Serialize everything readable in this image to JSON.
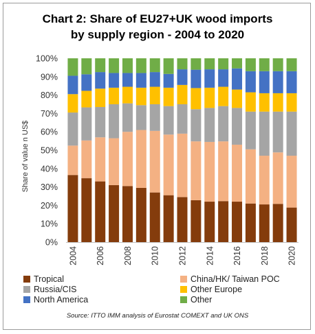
{
  "chart_data": {
    "type": "bar",
    "stacked": true,
    "title_line1": "Chart 2: Share of EU27+UK wood imports",
    "title_line2": "by supply region - 2004 to 2020",
    "ylabel": "Share of value n US$",
    "xlabel": "",
    "ylim": [
      0,
      100
    ],
    "y_ticks": [
      "0%",
      "10%",
      "20%",
      "30%",
      "40%",
      "50%",
      "60%",
      "70%",
      "80%",
      "90%",
      "100%"
    ],
    "categories": [
      "2004",
      "2005",
      "2006",
      "2007",
      "2008",
      "2009",
      "2010",
      "2011",
      "2012",
      "2013",
      "2014",
      "2015",
      "2016",
      "2017",
      "2018",
      "2019",
      "2020"
    ],
    "x_tick_labels": [
      "2004",
      "",
      "2006",
      "",
      "2008",
      "",
      "2010",
      "",
      "2012",
      "",
      "2014",
      "",
      "2016",
      "",
      "2018",
      "",
      "2020"
    ],
    "series": [
      {
        "name": "Tropical",
        "color": "#843c0c",
        "values": [
          36.5,
          34.8,
          33.0,
          31.0,
          30.5,
          29.5,
          27.0,
          25.5,
          24.5,
          22.8,
          22.0,
          22.3,
          22.0,
          21.0,
          20.5,
          20.8,
          18.8
        ]
      },
      {
        "name": "China/HK/ Taiwan POC",
        "color": "#f4b183",
        "values": [
          16.0,
          20.5,
          24.0,
          25.5,
          29.5,
          31.5,
          33.5,
          33.0,
          34.5,
          32.0,
          32.5,
          32.5,
          31.0,
          29.5,
          26.5,
          28.0,
          28.2
        ]
      },
      {
        "name": "Russia/CIS",
        "color": "#a5a5a5",
        "values": [
          18.0,
          18.0,
          16.5,
          18.5,
          15.5,
          13.5,
          14.5,
          15.5,
          16.0,
          17.5,
          18.5,
          19.2,
          20.0,
          20.5,
          24.0,
          22.2,
          24.0
        ]
      },
      {
        "name": "Other Europe",
        "color": "#ffc000",
        "values": [
          10.0,
          9.0,
          10.0,
          9.0,
          9.0,
          9.5,
          9.5,
          10.0,
          10.5,
          11.5,
          11.0,
          10.5,
          10.0,
          10.5,
          10.0,
          10.0,
          10.0
        ]
      },
      {
        "name": "North America",
        "color": "#4472c4",
        "values": [
          10.0,
          9.0,
          9.0,
          8.0,
          7.5,
          8.0,
          8.0,
          7.5,
          8.5,
          10.0,
          10.0,
          9.5,
          11.5,
          11.5,
          12.0,
          12.0,
          12.0
        ]
      },
      {
        "name": "Other",
        "color": "#70ad47",
        "values": [
          9.5,
          8.7,
          7.5,
          8.0,
          8.0,
          8.0,
          7.5,
          8.5,
          6.0,
          6.2,
          6.0,
          6.0,
          5.5,
          7.0,
          7.0,
          7.0,
          7.0
        ]
      }
    ],
    "legend_position": "bottom",
    "grid": false
  },
  "source": "Source: ITTO IMM analysis of Eurostat COMEXT and UK ONS"
}
